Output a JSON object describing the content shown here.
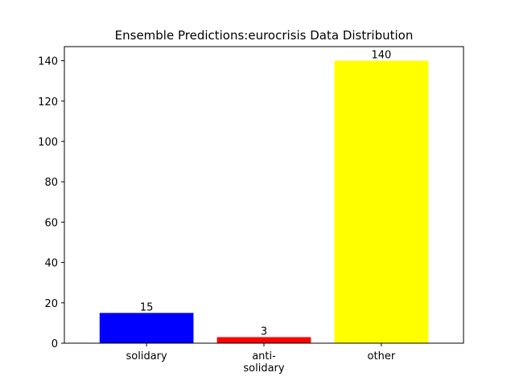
{
  "chart_data": {
    "type": "bar",
    "title": "Ensemble Predictions:eurocrisis Data Distribution",
    "categories": [
      "solidary",
      "anti-\nsolidary",
      "other"
    ],
    "values": [
      15,
      3,
      140
    ],
    "colors": [
      "#0000ff",
      "#ff0000",
      "#ffff00"
    ],
    "data_labels": [
      "15",
      "3",
      "140"
    ],
    "yticks": [
      0,
      20,
      40,
      60,
      80,
      100,
      120,
      140
    ],
    "ylim": [
      0,
      147
    ],
    "xlabel": "",
    "ylabel": "",
    "grid": false,
    "legend": "none"
  }
}
